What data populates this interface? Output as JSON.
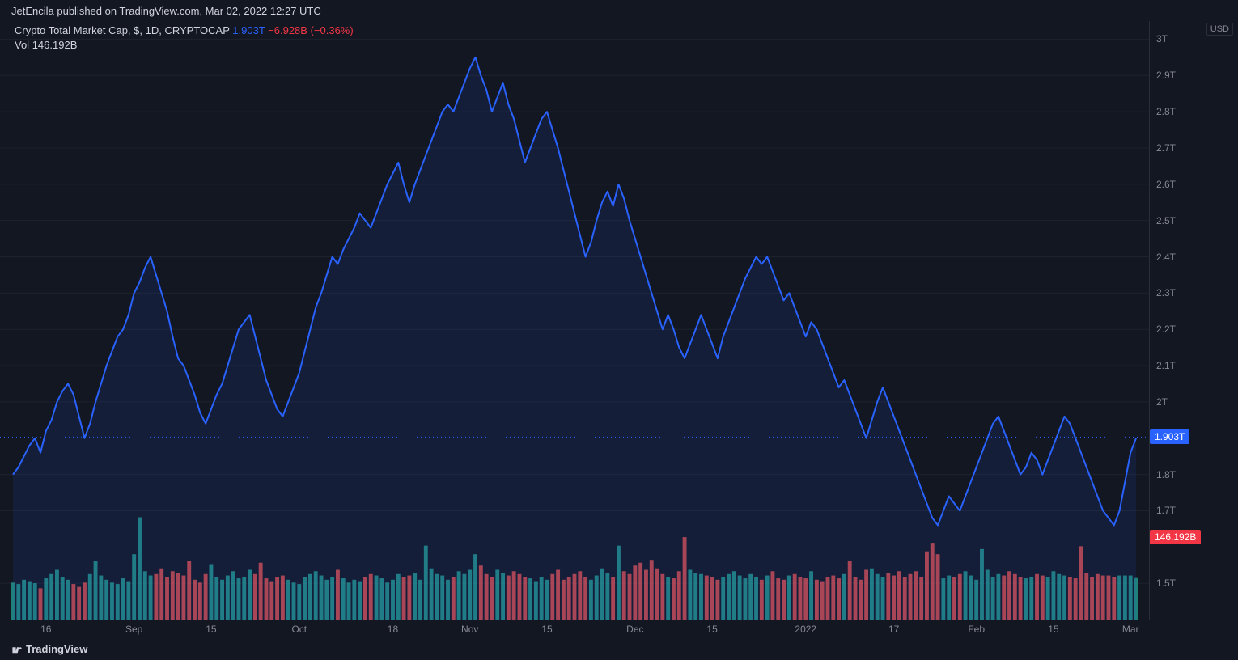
{
  "header_text": "JetEncila published on TradingView.com, Mar 02, 2022 12:27 UTC",
  "legend": {
    "title": "Crypto Total Market Cap, $, 1D, CRYPTOCAP",
    "value": "1.903T",
    "change_abs": "−6.928B",
    "change_pct": "(−0.36%)"
  },
  "volume_legend": {
    "label": "Vol",
    "value": "146.192B"
  },
  "currency_label": "USD",
  "footer": "TradingView",
  "colors": {
    "bg": "#131722",
    "text": "#d1d4dc",
    "muted": "#868993",
    "line": "#2962ff",
    "area_fill": "rgba(41,98,255,0.10)",
    "vol_up": "#26a69a",
    "vol_down": "#ef5350",
    "grid": "#1e222d",
    "dotted": "#2962ff"
  },
  "chart": {
    "type": "area",
    "ymin": 1.4,
    "ymax": 3.05,
    "yticks": [
      {
        "v": 3.0,
        "label": "3T"
      },
      {
        "v": 2.9,
        "label": "2.9T"
      },
      {
        "v": 2.8,
        "label": "2.8T"
      },
      {
        "v": 2.7,
        "label": "2.7T"
      },
      {
        "v": 2.6,
        "label": "2.6T"
      },
      {
        "v": 2.5,
        "label": "2.5T"
      },
      {
        "v": 2.4,
        "label": "2.4T"
      },
      {
        "v": 2.3,
        "label": "2.3T"
      },
      {
        "v": 2.2,
        "label": "2.2T"
      },
      {
        "v": 2.1,
        "label": "2.1T"
      },
      {
        "v": 2.0,
        "label": "2T"
      },
      {
        "v": 1.8,
        "label": "1.8T"
      },
      {
        "v": 1.7,
        "label": "1.7T"
      },
      {
        "v": 1.5,
        "label": "1.5T"
      }
    ],
    "price_marker": {
      "v": 1.903,
      "label": "1.903T"
    },
    "vol_marker": {
      "v": 1.627,
      "label": "146.192B"
    },
    "xticks": [
      {
        "i": 6,
        "label": "16"
      },
      {
        "i": 22,
        "label": "Sep"
      },
      {
        "i": 36,
        "label": "15"
      },
      {
        "i": 52,
        "label": "Oct"
      },
      {
        "i": 69,
        "label": "18"
      },
      {
        "i": 83,
        "label": "Nov"
      },
      {
        "i": 97,
        "label": "15"
      },
      {
        "i": 113,
        "label": "Dec"
      },
      {
        "i": 127,
        "label": "15"
      },
      {
        "i": 144,
        "label": "2022"
      },
      {
        "i": 160,
        "label": "17"
      },
      {
        "i": 175,
        "label": "Feb"
      },
      {
        "i": 189,
        "label": "15"
      },
      {
        "i": 203,
        "label": "Mar"
      }
    ],
    "n_points": 205,
    "series": [
      1.8,
      1.82,
      1.85,
      1.88,
      1.9,
      1.86,
      1.92,
      1.95,
      2.0,
      2.03,
      2.05,
      2.02,
      1.96,
      1.9,
      1.94,
      2.0,
      2.05,
      2.1,
      2.14,
      2.18,
      2.2,
      2.24,
      2.3,
      2.33,
      2.37,
      2.4,
      2.35,
      2.3,
      2.25,
      2.18,
      2.12,
      2.1,
      2.06,
      2.02,
      1.97,
      1.94,
      1.98,
      2.02,
      2.05,
      2.1,
      2.15,
      2.2,
      2.22,
      2.24,
      2.18,
      2.12,
      2.06,
      2.02,
      1.98,
      1.96,
      2.0,
      2.04,
      2.08,
      2.14,
      2.2,
      2.26,
      2.3,
      2.35,
      2.4,
      2.38,
      2.42,
      2.45,
      2.48,
      2.52,
      2.5,
      2.48,
      2.52,
      2.56,
      2.6,
      2.63,
      2.66,
      2.6,
      2.55,
      2.6,
      2.64,
      2.68,
      2.72,
      2.76,
      2.8,
      2.82,
      2.8,
      2.84,
      2.88,
      2.92,
      2.95,
      2.9,
      2.86,
      2.8,
      2.84,
      2.88,
      2.82,
      2.78,
      2.72,
      2.66,
      2.7,
      2.74,
      2.78,
      2.8,
      2.75,
      2.7,
      2.64,
      2.58,
      2.52,
      2.46,
      2.4,
      2.44,
      2.5,
      2.55,
      2.58,
      2.54,
      2.6,
      2.56,
      2.5,
      2.45,
      2.4,
      2.35,
      2.3,
      2.25,
      2.2,
      2.24,
      2.2,
      2.15,
      2.12,
      2.16,
      2.2,
      2.24,
      2.2,
      2.16,
      2.12,
      2.18,
      2.22,
      2.26,
      2.3,
      2.34,
      2.37,
      2.4,
      2.38,
      2.4,
      2.36,
      2.32,
      2.28,
      2.3,
      2.26,
      2.22,
      2.18,
      2.22,
      2.2,
      2.16,
      2.12,
      2.08,
      2.04,
      2.06,
      2.02,
      1.98,
      1.94,
      1.9,
      1.95,
      2.0,
      2.04,
      2.0,
      1.96,
      1.92,
      1.88,
      1.84,
      1.8,
      1.76,
      1.72,
      1.68,
      1.66,
      1.7,
      1.74,
      1.72,
      1.7,
      1.74,
      1.78,
      1.82,
      1.86,
      1.9,
      1.94,
      1.96,
      1.92,
      1.88,
      1.84,
      1.8,
      1.82,
      1.86,
      1.84,
      1.8,
      1.84,
      1.88,
      1.92,
      1.96,
      1.94,
      1.9,
      1.86,
      1.82,
      1.78,
      1.74,
      1.7,
      1.68,
      1.66,
      1.7,
      1.78,
      1.86,
      1.9
    ],
    "volumes": [
      130,
      125,
      140,
      135,
      128,
      110,
      145,
      160,
      175,
      150,
      140,
      125,
      115,
      130,
      160,
      205,
      155,
      140,
      130,
      125,
      145,
      135,
      230,
      360,
      170,
      155,
      160,
      180,
      150,
      170,
      165,
      155,
      205,
      140,
      130,
      160,
      195,
      150,
      140,
      155,
      170,
      145,
      150,
      175,
      160,
      200,
      145,
      135,
      150,
      155,
      140,
      130,
      125,
      150,
      160,
      170,
      155,
      140,
      150,
      175,
      145,
      130,
      140,
      135,
      150,
      160,
      155,
      145,
      130,
      140,
      160,
      150,
      155,
      165,
      140,
      260,
      180,
      160,
      155,
      140,
      150,
      170,
      160,
      175,
      230,
      190,
      160,
      150,
      175,
      165,
      155,
      170,
      160,
      150,
      145,
      135,
      150,
      140,
      160,
      175,
      140,
      150,
      160,
      170,
      150,
      140,
      155,
      180,
      165,
      150,
      260,
      170,
      160,
      190,
      200,
      175,
      210,
      180,
      160,
      150,
      145,
      170,
      290,
      175,
      165,
      160,
      155,
      150,
      140,
      150,
      160,
      170,
      155,
      145,
      160,
      150,
      140,
      155,
      170,
      145,
      140,
      155,
      160,
      150,
      145,
      170,
      140,
      135,
      150,
      155,
      145,
      160,
      205,
      150,
      140,
      175,
      180,
      160,
      150,
      165,
      155,
      170,
      150,
      160,
      170,
      150,
      240,
      270,
      230,
      145,
      155,
      150,
      160,
      170,
      155,
      140,
      248,
      175,
      150,
      160,
      155,
      170,
      160,
      150,
      145,
      150,
      160,
      155,
      150,
      170,
      160,
      155,
      150,
      145,
      258,
      165,
      150,
      160,
      155,
      155,
      150,
      155,
      155,
      155,
      146
    ],
    "vol_max": 370,
    "vol_area_height": 130
  }
}
